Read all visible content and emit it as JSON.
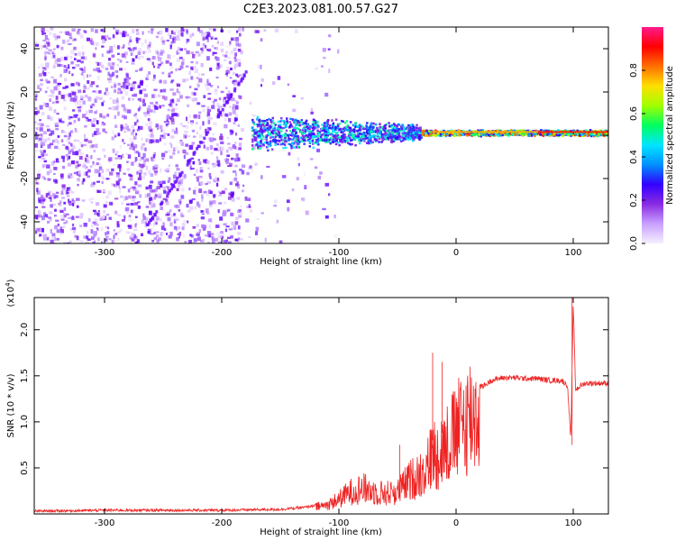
{
  "title": "C2E3.2023.081.00.57.G27",
  "chart_data": [
    {
      "type": "heatmap",
      "title": "C2E3.2023.081.00.57.G27",
      "xlabel": "Height of straight line (km)",
      "ylabel": "Frequency (Hz)",
      "xlim": [
        -360,
        130
      ],
      "ylim": [
        -50,
        50
      ],
      "x_ticks": [
        -300,
        -200,
        -100,
        0,
        100
      ],
      "y_ticks": [
        -40,
        -20,
        0,
        20,
        40
      ],
      "colorbar": {
        "label": "Normalized spectral amplitude",
        "range": [
          0,
          1
        ],
        "ticks": [
          0.0,
          0.2,
          0.4,
          0.6,
          0.8
        ],
        "colormap": [
          "#f5f0ff",
          "#c9a0ff",
          "#8a2be2",
          "#3300ff",
          "#0090ff",
          "#00e5ff",
          "#00ff60",
          "#a0ff00",
          "#ffe000",
          "#ff7000",
          "#ff0000",
          "#ff1a8c"
        ]
      },
      "features": {
        "noise_region_km": [
          -360,
          -140
        ],
        "signal_band_km": [
          -175,
          130
        ],
        "signal_center_hz": 1.5,
        "diagonal_streak": {
          "from": [
            -275,
            -50
          ],
          "to": [
            -180,
            30
          ]
        }
      }
    },
    {
      "type": "line",
      "xlabel": "Height of straight line (km)",
      "ylabel": "SNR (10 * v/v)",
      "y_scale_label": "(x10",
      "y_scale_exp": "4",
      "y_scale_close": ")",
      "xlim": [
        -360,
        130
      ],
      "ylim": [
        0,
        2.35
      ],
      "x_ticks": [
        -300,
        -200,
        -100,
        0,
        100
      ],
      "y_ticks": [
        0.5,
        1.0,
        1.5,
        2.0
      ],
      "color": "#ee2222",
      "series": [
        {
          "x": [
            -360,
            -300,
            -250,
            -200,
            -150,
            -130,
            -110,
            -100,
            -90,
            -80,
            -70,
            -60,
            -50,
            -40,
            -30,
            -25,
            -20,
            -15,
            -10,
            -5,
            0,
            5,
            10,
            15,
            20,
            25,
            30,
            40,
            50,
            60,
            70,
            80,
            90,
            95,
            98,
            100,
            102,
            105,
            110,
            120,
            130
          ],
          "y": [
            0.03,
            0.04,
            0.04,
            0.04,
            0.05,
            0.07,
            0.12,
            0.2,
            0.3,
            0.35,
            0.3,
            0.28,
            0.3,
            0.45,
            0.55,
            0.65,
            0.8,
            0.85,
            0.9,
            1.0,
            1.1,
            1.2,
            1.3,
            1.35,
            1.38,
            1.4,
            1.45,
            1.48,
            1.48,
            1.47,
            1.47,
            1.45,
            1.45,
            1.4,
            0.8,
            2.3,
            1.35,
            1.38,
            1.42,
            1.42,
            1.42
          ]
        }
      ],
      "annotations": {
        "spikes": [
          {
            "x": -48,
            "y": 0.75
          },
          {
            "x": -20,
            "y": 1.75
          },
          {
            "x": -12,
            "y": 1.65
          },
          {
            "x": 12,
            "y": 1.6
          },
          {
            "x": 99,
            "y": 2.35
          },
          {
            "x": 99,
            "y": 0.75
          }
        ]
      }
    }
  ]
}
